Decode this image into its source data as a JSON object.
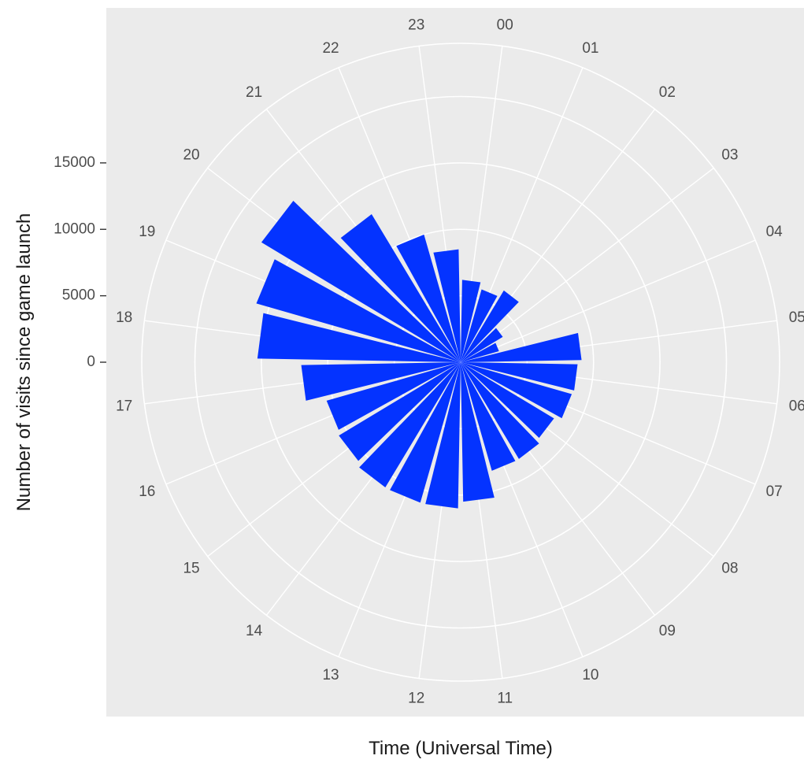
{
  "chart_data": {
    "type": "bar",
    "coord": "polar",
    "xlabel": "Time (Universal Time)",
    "ylabel": "Number of visits since game launch",
    "categories": [
      "00",
      "01",
      "02",
      "03",
      "04",
      "05",
      "06",
      "07",
      "08",
      "09",
      "10",
      "11",
      "12",
      "13",
      "14",
      "15",
      "16",
      "17",
      "18",
      "19",
      "20",
      "21",
      "22",
      "23"
    ],
    "values": [
      6200,
      5700,
      6300,
      3700,
      3000,
      9100,
      8800,
      8700,
      8200,
      8500,
      8500,
      10500,
      11000,
      11000,
      11000,
      10700,
      10500,
      12000,
      15300,
      16000,
      17500,
      13000,
      10000,
      8500
    ],
    "yticks": [
      0,
      5000,
      10000,
      15000
    ],
    "ylim": [
      0,
      24000
    ],
    "grid": true,
    "colors": {
      "bar": "#0433ff",
      "panel": "#ebebeb",
      "grid": "#ffffff",
      "text": "#4d4d4d"
    }
  }
}
